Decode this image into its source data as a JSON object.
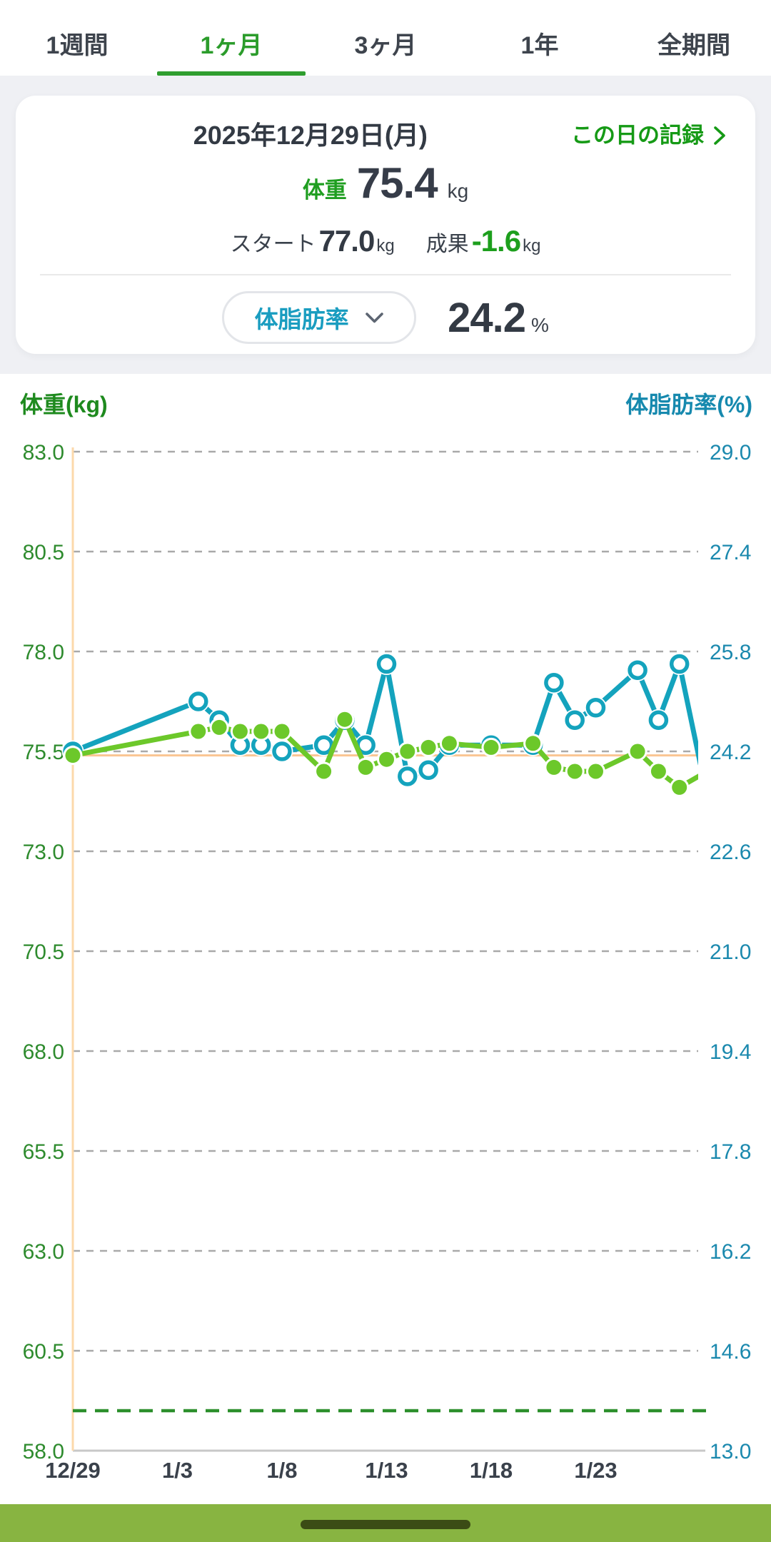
{
  "tabs": {
    "items": [
      {
        "label": "1週間",
        "active": false
      },
      {
        "label": "1ヶ月",
        "active": true
      },
      {
        "label": "3ヶ月",
        "active": false
      },
      {
        "label": "1年",
        "active": false
      },
      {
        "label": "全期間",
        "active": false
      }
    ]
  },
  "card": {
    "date": "2025年12月29日(月)",
    "record_link": "この日の記録",
    "weight_label": "体重",
    "weight_value": "75.4",
    "weight_unit": "kg",
    "start_label": "スタート",
    "start_value": "77.0",
    "start_unit": "kg",
    "result_label": "成果",
    "result_value": "-1.6",
    "result_unit": "kg",
    "metric_selector": "体脂肪率",
    "metric_value": "24.2",
    "metric_unit": "%"
  },
  "chart_data": {
    "type": "line",
    "x_axis": {
      "tick_labels": [
        "12/29",
        "1/3",
        "1/8",
        "1/13",
        "1/18",
        "1/23"
      ],
      "tick_days": [
        0,
        5,
        10,
        15,
        20,
        25
      ],
      "total_days_shown": 30
    },
    "left_axis": {
      "label": "体重(kg)",
      "min": 58.0,
      "max": 83.0,
      "step": 2.5,
      "ticks": [
        "83.0",
        "80.5",
        "78.0",
        "75.5",
        "73.0",
        "70.5",
        "68.0",
        "65.5",
        "63.0",
        "60.5",
        "58.0"
      ]
    },
    "right_axis": {
      "label": "体脂肪率(%)",
      "min": 13.0,
      "max": 29.0,
      "step": 1.6,
      "ticks": [
        "29.0",
        "27.4",
        "25.8",
        "24.2",
        "22.6",
        "21.0",
        "19.4",
        "17.8",
        "16.2",
        "14.6",
        "13.0"
      ]
    },
    "x": {
      "dates": [
        "12/29",
        "1/4",
        "1/5",
        "1/6",
        "1/7",
        "1/8",
        "1/10",
        "1/11",
        "1/12",
        "1/13",
        "1/14",
        "1/15",
        "1/16",
        "1/18",
        "1/20",
        "1/21",
        "1/22",
        "1/23",
        "1/25",
        "1/26",
        "1/27",
        "1/28"
      ],
      "days": [
        0,
        6,
        7,
        8,
        9,
        10,
        12,
        13,
        14,
        15,
        16,
        17,
        18,
        20,
        22,
        23,
        24,
        25,
        27,
        28,
        29,
        30
      ],
      "last_point_clipped": true
    },
    "series": [
      {
        "name": "体重",
        "unit": "kg",
        "axis": "left",
        "marker": "filled",
        "color": "#6cc82a",
        "values": [
          75.4,
          76.0,
          76.1,
          76.0,
          76.0,
          76.0,
          75.0,
          76.3,
          75.1,
          75.3,
          75.5,
          75.6,
          75.7,
          75.6,
          75.7,
          75.1,
          75.0,
          75.0,
          75.5,
          75.0,
          74.6,
          74.9
        ]
      },
      {
        "name": "体脂肪率",
        "unit": "%",
        "axis": "right",
        "marker": "open",
        "color": "#14a3bd",
        "values": [
          24.2,
          25.0,
          24.7,
          24.3,
          24.3,
          24.2,
          24.3,
          24.7,
          24.3,
          25.6,
          23.8,
          23.9,
          24.3,
          24.3,
          24.3,
          25.3,
          24.7,
          24.9,
          25.5,
          24.7,
          25.6,
          24.0
        ]
      }
    ],
    "reference_lines": {
      "selected_weight": 75.4,
      "goal_weight": 59.0
    },
    "grid": "horizontal dashed"
  },
  "colors": {
    "weight_line": "#6cc82a",
    "bodyfat_line": "#14a3bd",
    "weight_axis_text": "#2e8b2e",
    "bodyfat_axis_text": "#1b89ae",
    "x_axis_text": "#3a414b",
    "gridline": "#a9a9a9",
    "baseline": "#c8c8c8",
    "axis_line_orange": "#fcd9ab",
    "selected_line_orange": "#fac592",
    "goal_line_green": "#2c8f2c",
    "ui_green": "#169a16",
    "bottom_bar_green": "#88b441",
    "home_pill": "#3b4c15"
  }
}
